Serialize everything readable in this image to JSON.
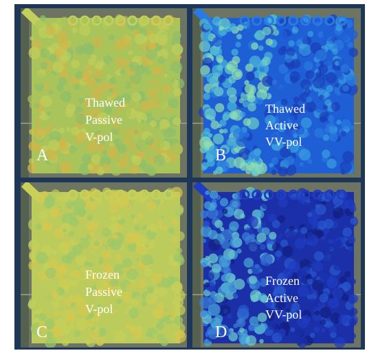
{
  "panels": [
    {
      "letter": "A",
      "lines": [
        "Thawed",
        "Passive",
        "V-pol"
      ]
    },
    {
      "letter": "B",
      "lines": [
        "Thawed",
        "Active",
        "VV-pol"
      ]
    },
    {
      "letter": "C",
      "lines": [
        "Frozen",
        "Passive",
        "V-pol"
      ]
    },
    {
      "letter": "D",
      "lines": [
        "Frozen",
        "Active",
        "VV-pol"
      ]
    }
  ]
}
